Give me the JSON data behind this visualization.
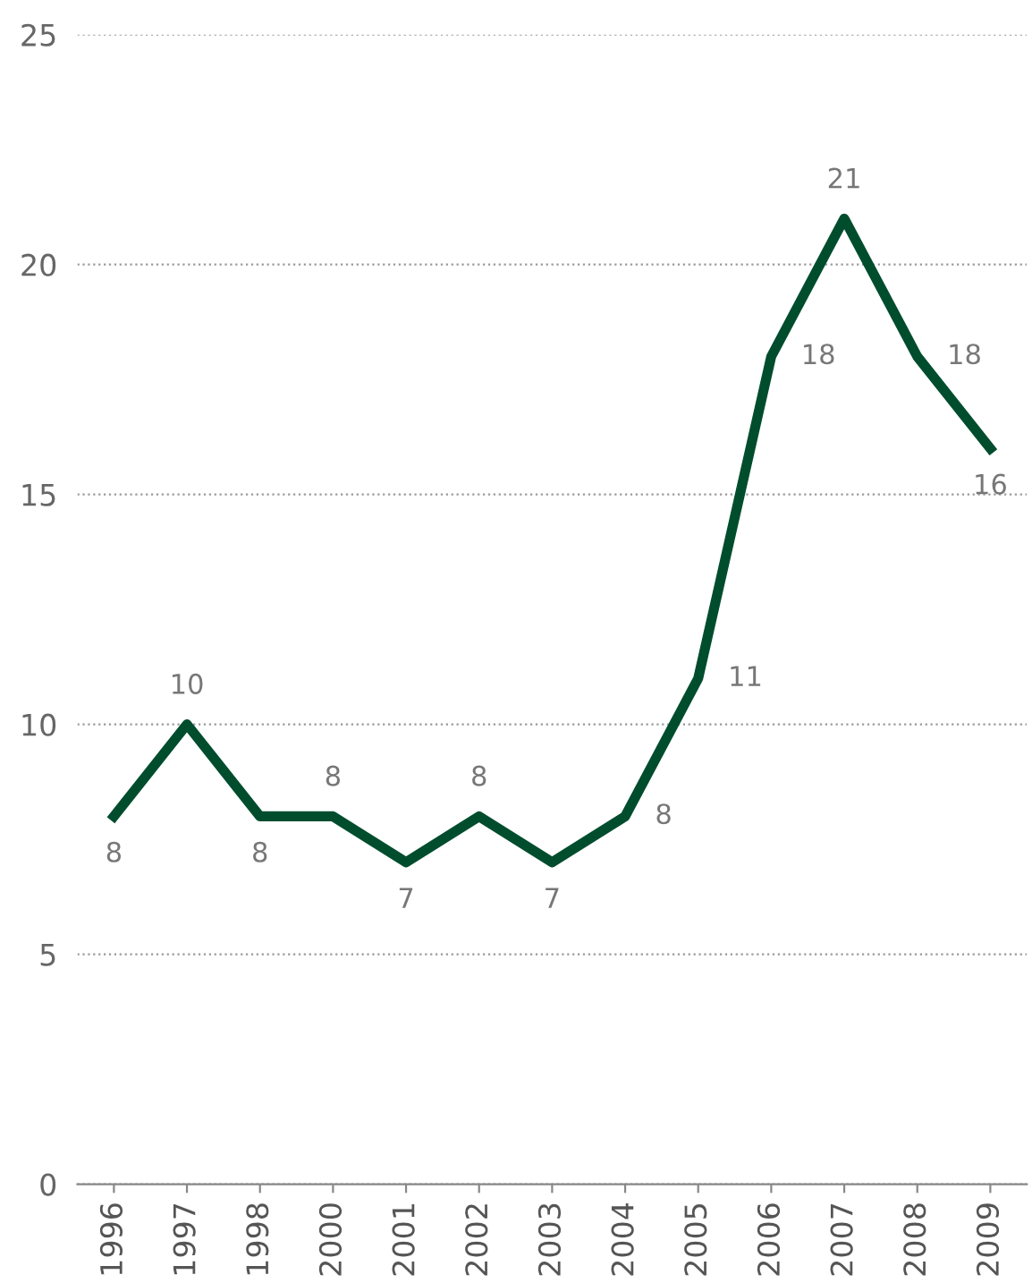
{
  "chart_data": {
    "type": "line",
    "categories": [
      "1996",
      "1997",
      "1998",
      "2000",
      "2001",
      "2002",
      "2003",
      "2004",
      "2005",
      "2006",
      "2007",
      "2008",
      "2009"
    ],
    "series": [
      {
        "color": "#004d2e",
        "values": [
          8,
          10,
          8,
          8,
          7,
          8,
          7,
          8,
          11,
          18,
          21,
          18,
          16
        ]
      }
    ],
    "ylim": [
      0,
      25
    ],
    "yticks": [
      0,
      5,
      10,
      15,
      20,
      25
    ],
    "grid": "y",
    "data_labels": true,
    "marker": "none",
    "line_style": "solid"
  }
}
